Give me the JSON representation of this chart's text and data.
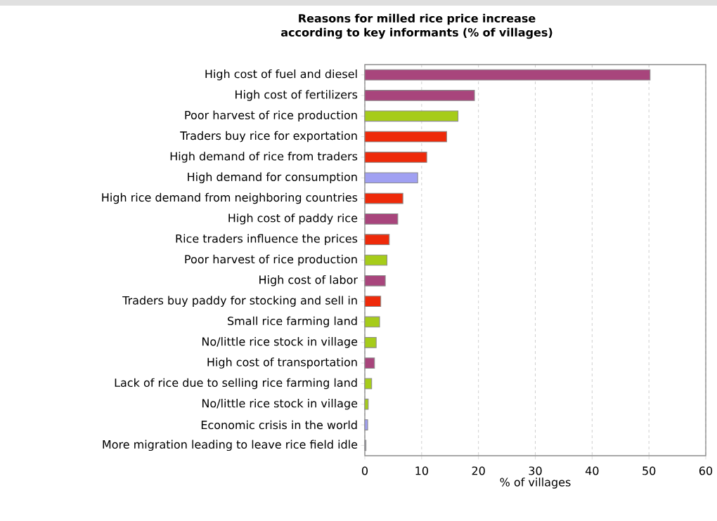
{
  "chart_data": {
    "type": "bar",
    "orientation": "horizontal",
    "title": "Reasons for milled rice price increase according to key informants (% of villages)",
    "xlabel": "% of villages",
    "categories": [
      "High cost of fuel and diesel",
      "High cost of fertilizers",
      "Poor harvest of rice production",
      "Traders buy rice for exportation",
      "High demand of rice from traders",
      "High demand for consumption",
      "High rice demand from neighboring countries",
      "High cost of paddy rice",
      "Rice traders influence the prices",
      "Poor harvest of rice production",
      "High cost of labor",
      "Traders buy paddy for stocking and sell in",
      "Small rice farming land",
      "No/little rice stock in village",
      "High cost of transportation",
      "Lack of rice due to selling rice farming land",
      "No/little rice stock in village",
      "Economic crisis in the world",
      "More migration leading to leave rice field idle"
    ],
    "values": [
      50.2,
      19.3,
      16.4,
      14.4,
      10.9,
      9.3,
      6.7,
      5.8,
      4.3,
      3.9,
      3.6,
      2.8,
      2.6,
      2.0,
      1.7,
      1.2,
      0.6,
      0.5,
      0.2
    ],
    "colors": [
      "#a8457c",
      "#a8457c",
      "#a6cc1a",
      "#ee2a0a",
      "#ee2a0a",
      "#a0a0f2",
      "#ee2a0a",
      "#a8457c",
      "#ee2a0a",
      "#a6cc1a",
      "#a8457c",
      "#ee2a0a",
      "#a6cc1a",
      "#a6cc1a",
      "#a8457c",
      "#a6cc1a",
      "#a6cc1a",
      "#a0a0f2",
      "#a0a0b0"
    ],
    "xlim": [
      0,
      60
    ],
    "xticks": [
      0,
      10,
      20,
      30,
      40,
      50,
      60
    ],
    "grid": "x"
  }
}
